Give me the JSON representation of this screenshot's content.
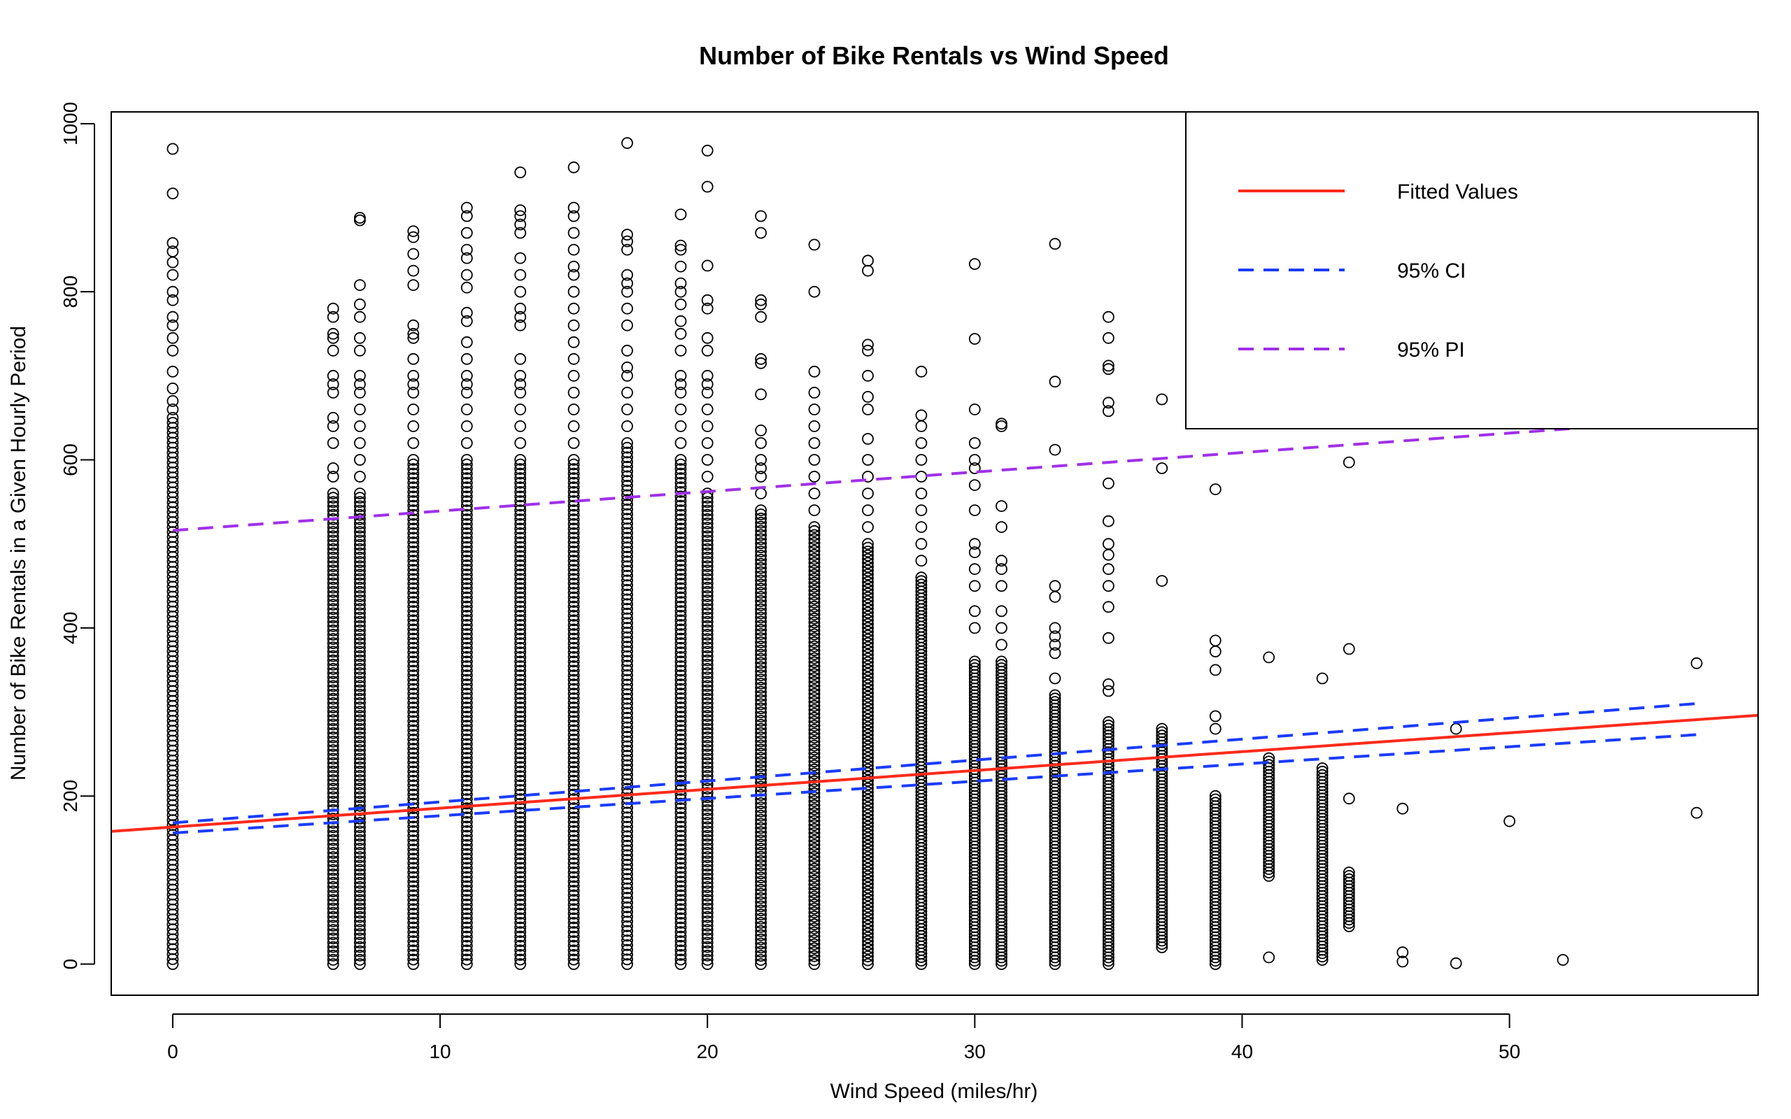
{
  "chart_data": {
    "type": "scatter",
    "title": "Number of Bike Rentals vs Wind Speed",
    "xlabel": "Wind Speed (miles/hr)",
    "ylabel": "Number of Bike Rentals in a Given Hourly Period",
    "xlim": [
      -2.3,
      59.3
    ],
    "ylim": [
      -37,
      1014
    ],
    "x_ticks": [
      0,
      10,
      20,
      30,
      40,
      50
    ],
    "y_ticks": [
      0,
      200,
      400,
      600,
      800,
      1000
    ],
    "grid": false,
    "legend_position": "top-right",
    "legend": [
      {
        "label": "Fitted Values",
        "color": "#ff2a1a",
        "style": "solid"
      },
      {
        "label": "95% CI",
        "color": "#1a3cff",
        "style": "dashed"
      },
      {
        "label": "95% PI",
        "color": "#a030e8",
        "style": "dashed"
      }
    ],
    "columns": [
      {
        "x": 0,
        "ymin": 0,
        "ymax": 650,
        "extra": [
          970,
          917,
          858,
          848,
          835,
          820,
          800,
          790,
          770,
          760,
          745,
          730,
          705,
          685,
          670,
          660
        ]
      },
      {
        "x": 6,
        "ymin": 0,
        "ymax": 560,
        "extra": [
          780,
          770,
          750,
          745,
          730,
          700,
          690,
          680,
          650,
          640,
          620,
          590,
          580
        ]
      },
      {
        "x": 7,
        "ymin": 0,
        "ymax": 560,
        "extra": [
          888,
          885,
          808,
          785,
          770,
          745,
          730,
          700,
          690,
          680,
          660,
          640,
          620,
          600,
          580
        ]
      },
      {
        "x": 9,
        "ymin": 0,
        "ymax": 600,
        "extra": [
          872,
          865,
          845,
          825,
          808,
          760,
          750,
          745,
          720,
          700,
          690,
          680,
          660,
          640,
          620
        ]
      },
      {
        "x": 11,
        "ymin": 0,
        "ymax": 600,
        "extra": [
          900,
          890,
          870,
          850,
          840,
          820,
          805,
          775,
          765,
          740,
          720,
          700,
          690,
          680,
          660,
          640,
          620
        ]
      },
      {
        "x": 13,
        "ymin": 0,
        "ymax": 600,
        "extra": [
          942,
          897,
          890,
          880,
          870,
          840,
          820,
          800,
          780,
          770,
          760,
          720,
          700,
          690,
          680,
          660,
          640,
          620
        ]
      },
      {
        "x": 15,
        "ymin": 0,
        "ymax": 600,
        "extra": [
          948,
          900,
          890,
          870,
          850,
          830,
          820,
          800,
          780,
          760,
          740,
          720,
          700,
          680,
          660,
          640,
          620
        ]
      },
      {
        "x": 17,
        "ymin": 0,
        "ymax": 620,
        "extra": [
          977,
          868,
          860,
          850,
          820,
          810,
          800,
          780,
          760,
          730,
          710,
          700,
          680,
          660,
          640
        ]
      },
      {
        "x": 19,
        "ymin": 0,
        "ymax": 600,
        "extra": [
          892,
          855,
          850,
          830,
          810,
          800,
          785,
          765,
          750,
          730,
          700,
          690,
          680,
          660,
          640,
          620
        ]
      },
      {
        "x": 20,
        "ymin": 0,
        "ymax": 560,
        "extra": [
          968,
          925,
          831,
          790,
          780,
          745,
          730,
          700,
          690,
          680,
          660,
          640,
          620,
          600,
          580
        ]
      },
      {
        "x": 22,
        "ymin": 0,
        "ymax": 540,
        "extra": [
          890,
          870,
          790,
          785,
          770,
          720,
          715,
          678,
          635,
          620,
          600,
          590,
          580,
          560
        ]
      },
      {
        "x": 24,
        "ymin": 0,
        "ymax": 520,
        "extra": [
          856,
          800,
          705,
          680,
          660,
          640,
          620,
          600,
          580,
          560,
          540
        ]
      },
      {
        "x": 26,
        "ymin": 0,
        "ymax": 500,
        "extra": [
          837,
          825,
          737,
          730,
          700,
          675,
          660,
          625,
          600,
          580,
          560,
          540,
          520
        ]
      },
      {
        "x": 28,
        "ymin": 0,
        "ymax": 460,
        "extra": [
          705,
          653,
          640,
          620,
          600,
          580,
          560,
          540,
          520,
          500,
          480
        ]
      },
      {
        "x": 30,
        "ymin": 0,
        "ymax": 360,
        "extra": [
          833,
          744,
          660,
          620,
          600,
          590,
          570,
          540,
          500,
          490,
          470,
          450,
          420,
          400
        ]
      },
      {
        "x": 31,
        "ymin": 0,
        "ymax": 360,
        "extra": [
          643,
          640,
          545,
          520,
          480,
          470,
          450,
          420,
          400,
          380
        ]
      },
      {
        "x": 33,
        "ymin": 0,
        "ymax": 320,
        "extra": [
          857,
          693,
          612,
          450,
          437,
          400,
          390,
          380,
          370,
          340
        ]
      },
      {
        "x": 35,
        "ymin": 0,
        "ymax": 290,
        "extra": [
          770,
          745,
          712,
          708,
          668,
          658,
          572,
          527,
          500,
          487,
          470,
          450,
          425,
          388,
          333,
          325
        ]
      },
      {
        "x": 37,
        "ymin": 20,
        "ymax": 280,
        "extra": [
          672,
          590,
          456
        ]
      },
      {
        "x": 39,
        "ymin": 0,
        "ymax": 200,
        "extra": [
          565,
          385,
          372,
          350,
          295,
          280
        ]
      },
      {
        "x": 41,
        "ymin": 105,
        "ymax": 245,
        "extra": [
          365,
          8
        ]
      },
      {
        "x": 43,
        "ymin": 5,
        "ymax": 235,
        "extra": [
          340
        ]
      },
      {
        "x": 44,
        "ymin": 45,
        "ymax": 110,
        "extra": [
          597,
          375,
          197
        ]
      }
    ],
    "points": [
      {
        "x": 46,
        "y": 185
      },
      {
        "x": 46,
        "y": 14
      },
      {
        "x": 46,
        "y": 3
      },
      {
        "x": 48,
        "y": 280
      },
      {
        "x": 48,
        "y": 1
      },
      {
        "x": 50,
        "y": 170
      },
      {
        "x": 52,
        "y": 5
      },
      {
        "x": 57,
        "y": 358
      },
      {
        "x": 57,
        "y": 180
      }
    ],
    "fitted_line": {
      "x": [
        -2.3,
        59.3
      ],
      "y": [
        158,
        296
      ]
    },
    "ci_upper": {
      "x": [
        0,
        57
      ],
      "y": [
        168,
        310
      ]
    },
    "ci_lower": {
      "x": [
        0,
        57
      ],
      "y": [
        156,
        273
      ]
    },
    "pi_upper": {
      "x": [
        0,
        57
      ],
      "y": [
        516,
        648
      ]
    }
  }
}
